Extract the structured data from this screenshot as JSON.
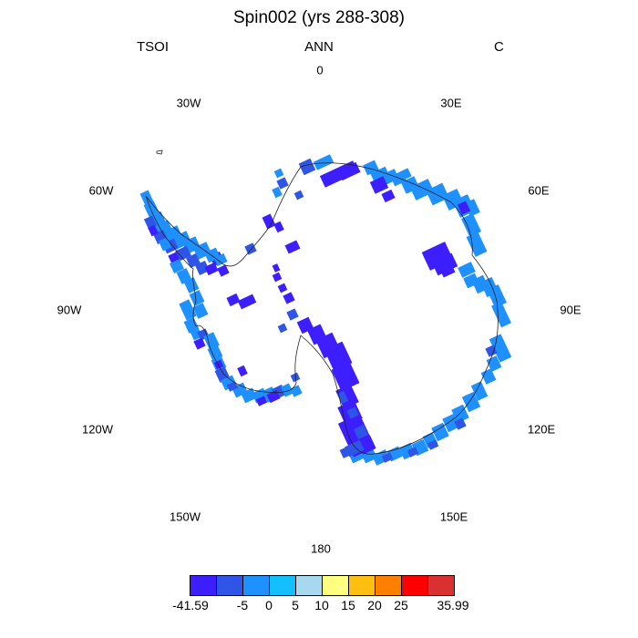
{
  "header": {
    "title": "Spin002 (yrs 288-308)",
    "left": "TSOI",
    "center": "ANN",
    "right": "C"
  },
  "longitude_labels": [
    {
      "key": "0",
      "text": "0"
    },
    {
      "key": "30E",
      "text": "30E"
    },
    {
      "key": "60E",
      "text": "60E"
    },
    {
      "key": "90E",
      "text": "90E"
    },
    {
      "key": "120E",
      "text": "120E"
    },
    {
      "key": "150E",
      "text": "150E"
    },
    {
      "key": "180",
      "text": "180"
    },
    {
      "key": "150W",
      "text": "150W"
    },
    {
      "key": "120W",
      "text": "120W"
    },
    {
      "key": "90W",
      "text": "90W"
    },
    {
      "key": "60W",
      "text": "60W"
    },
    {
      "key": "30W",
      "text": "30W"
    }
  ],
  "colorbar": {
    "colors": [
      "#3c1eff",
      "#2f55e6",
      "#1e90ff",
      "#14bfff",
      "#a6d8f0",
      "#ffff80",
      "#ffbf10",
      "#ff7f00",
      "#ff0000",
      "#d93030"
    ],
    "labels": [
      "-41.59",
      "-5",
      "0",
      "5",
      "10",
      "15",
      "20",
      "25",
      "35.99"
    ]
  },
  "legend_colors": {
    "deep": "#3c1eff",
    "mid": "#2f55e6",
    "light": "#1e90ff"
  }
}
